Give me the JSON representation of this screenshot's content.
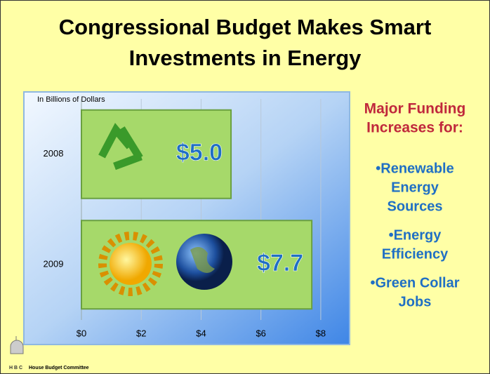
{
  "slide": {
    "title": [
      "Congressional Budget Makes Smart",
      "Investments in Energy"
    ],
    "side_heading": [
      "Major Funding",
      "Increases for:"
    ],
    "side_items": [
      [
        "•Renewable",
        "Energy",
        "Sources"
      ],
      [
        "•Energy",
        "Efficiency"
      ],
      [
        "•Green Collar",
        "Jobs"
      ]
    ],
    "logo": "H B C",
    "footer": "House Budget Committee"
  },
  "chart_data": {
    "type": "bar",
    "orientation": "horizontal",
    "y_label": "In Billions of Dollars",
    "categories": [
      "2008",
      "2009"
    ],
    "values": [
      5.0,
      7.7
    ],
    "value_labels": [
      "$5.0",
      "$7.7"
    ],
    "color": "#a6d96a",
    "label_color": "#1f6fc4",
    "xlim": [
      0,
      8.8
    ],
    "xticks": [
      {
        "value": 0,
        "label": "$0"
      },
      {
        "value": 2,
        "label": "$2"
      },
      {
        "value": 4,
        "label": "$4"
      },
      {
        "value": 6,
        "label": "$6"
      },
      {
        "value": 8,
        "label": "$8"
      }
    ],
    "grid": true
  }
}
